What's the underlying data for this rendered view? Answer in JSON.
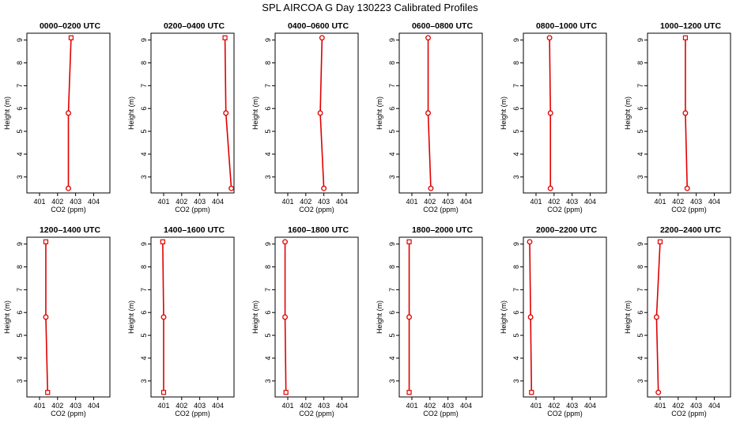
{
  "title": "SPL AIRCOA G  Day 130223  Calibrated Profiles",
  "series_color": "#e00000",
  "chart_data": [
    {
      "type": "line",
      "title": "0000–0200 UTC",
      "xlabel": "CO2 (ppm)",
      "ylabel": "Height (m)",
      "xlim": [
        400.3,
        404.9
      ],
      "ylim": [
        2.3,
        9.3
      ],
      "xticks": [
        401,
        402,
        403,
        404
      ],
      "yticks": [
        3,
        4,
        5,
        6,
        7,
        8,
        9
      ],
      "x": [
        402.6,
        402.6,
        402.75
      ],
      "y": [
        2.5,
        5.8,
        9.1
      ],
      "markers": [
        "circle",
        "circle",
        "square"
      ]
    },
    {
      "type": "line",
      "title": "0200–0400 UTC",
      "xlabel": "CO2 (ppm)",
      "ylabel": "Height (m)",
      "xlim": [
        400.3,
        404.9
      ],
      "ylim": [
        2.3,
        9.3
      ],
      "xticks": [
        401,
        402,
        403,
        404
      ],
      "yticks": [
        3,
        4,
        5,
        6,
        7,
        8,
        9
      ],
      "x": [
        404.75,
        404.45,
        404.4
      ],
      "y": [
        2.5,
        5.8,
        9.1
      ],
      "markers": [
        "circle",
        "circle",
        "square"
      ]
    },
    {
      "type": "line",
      "title": "0400–0600 UTC",
      "xlabel": "CO2 (ppm)",
      "ylabel": "Height (m)",
      "xlim": [
        400.3,
        404.9
      ],
      "ylim": [
        2.3,
        9.3
      ],
      "xticks": [
        401,
        402,
        403,
        404
      ],
      "yticks": [
        3,
        4,
        5,
        6,
        7,
        8,
        9
      ],
      "x": [
        403.0,
        402.8,
        402.9
      ],
      "y": [
        2.5,
        5.8,
        9.1
      ],
      "markers": [
        "circle",
        "circle",
        "circle"
      ]
    },
    {
      "type": "line",
      "title": "0600–0800 UTC",
      "xlabel": "CO2 (ppm)",
      "ylabel": "Height (m)",
      "xlim": [
        400.3,
        404.9
      ],
      "ylim": [
        2.3,
        9.3
      ],
      "xticks": [
        401,
        402,
        403,
        404
      ],
      "yticks": [
        3,
        4,
        5,
        6,
        7,
        8,
        9
      ],
      "x": [
        402.05,
        401.9,
        401.9
      ],
      "y": [
        2.5,
        5.8,
        9.1
      ],
      "markers": [
        "circle",
        "circle",
        "circle"
      ]
    },
    {
      "type": "line",
      "title": "0800–1000 UTC",
      "xlabel": "CO2 (ppm)",
      "ylabel": "Height (m)",
      "xlim": [
        400.3,
        404.9
      ],
      "ylim": [
        2.3,
        9.3
      ],
      "xticks": [
        401,
        402,
        403,
        404
      ],
      "yticks": [
        3,
        4,
        5,
        6,
        7,
        8,
        9
      ],
      "x": [
        401.8,
        401.8,
        401.75
      ],
      "y": [
        2.5,
        5.8,
        9.1
      ],
      "markers": [
        "circle",
        "circle",
        "circle"
      ]
    },
    {
      "type": "line",
      "title": "1000–1200 UTC",
      "xlabel": "CO2 (ppm)",
      "ylabel": "Height (m)",
      "xlim": [
        400.3,
        404.9
      ],
      "ylim": [
        2.3,
        9.3
      ],
      "xticks": [
        401,
        402,
        403,
        404
      ],
      "yticks": [
        3,
        4,
        5,
        6,
        7,
        8,
        9
      ],
      "x": [
        402.5,
        402.4,
        402.4
      ],
      "y": [
        2.5,
        5.8,
        9.1
      ],
      "markers": [
        "circle",
        "circle",
        "square"
      ]
    },
    {
      "type": "line",
      "title": "1200–1400 UTC",
      "xlabel": "CO2 (ppm)",
      "ylabel": "Height (m)",
      "xlim": [
        400.3,
        404.9
      ],
      "ylim": [
        2.3,
        9.3
      ],
      "xticks": [
        401,
        402,
        403,
        404
      ],
      "yticks": [
        3,
        4,
        5,
        6,
        7,
        8,
        9
      ],
      "x": [
        401.45,
        401.35,
        401.35
      ],
      "y": [
        2.5,
        5.8,
        9.1
      ],
      "markers": [
        "square",
        "circle",
        "square"
      ]
    },
    {
      "type": "line",
      "title": "1400–1600 UTC",
      "xlabel": "CO2 (ppm)",
      "ylabel": "Height (m)",
      "xlim": [
        400.3,
        404.9
      ],
      "ylim": [
        2.3,
        9.3
      ],
      "xticks": [
        401,
        402,
        403,
        404
      ],
      "yticks": [
        3,
        4,
        5,
        6,
        7,
        8,
        9
      ],
      "x": [
        401.0,
        401.0,
        400.95
      ],
      "y": [
        2.5,
        5.8,
        9.1
      ],
      "markers": [
        "square",
        "circle",
        "square"
      ]
    },
    {
      "type": "line",
      "title": "1600–1800 UTC",
      "xlabel": "CO2 (ppm)",
      "ylabel": "Height (m)",
      "xlim": [
        400.3,
        404.9
      ],
      "ylim": [
        2.3,
        9.3
      ],
      "xticks": [
        401,
        402,
        403,
        404
      ],
      "yticks": [
        3,
        4,
        5,
        6,
        7,
        8,
        9
      ],
      "x": [
        400.9,
        400.85,
        400.85
      ],
      "y": [
        2.5,
        5.8,
        9.1
      ],
      "markers": [
        "square",
        "circle",
        "circle"
      ]
    },
    {
      "type": "line",
      "title": "1800–2000 UTC",
      "xlabel": "CO2 (ppm)",
      "ylabel": "Height (m)",
      "xlim": [
        400.3,
        404.9
      ],
      "ylim": [
        2.3,
        9.3
      ],
      "xticks": [
        401,
        402,
        403,
        404
      ],
      "yticks": [
        3,
        4,
        5,
        6,
        7,
        8,
        9
      ],
      "x": [
        400.85,
        400.85,
        400.85
      ],
      "y": [
        2.5,
        5.8,
        9.1
      ],
      "markers": [
        "square",
        "circle",
        "square"
      ]
    },
    {
      "type": "line",
      "title": "2000–2200 UTC",
      "xlabel": "CO2 (ppm)",
      "ylabel": "Height (m)",
      "xlim": [
        400.3,
        404.9
      ],
      "ylim": [
        2.3,
        9.3
      ],
      "xticks": [
        401,
        402,
        403,
        404
      ],
      "yticks": [
        3,
        4,
        5,
        6,
        7,
        8,
        9
      ],
      "x": [
        400.75,
        400.7,
        400.65
      ],
      "y": [
        2.5,
        5.8,
        9.1
      ],
      "markers": [
        "square",
        "circle",
        "circle"
      ]
    },
    {
      "type": "line",
      "title": "2200–2400 UTC",
      "xlabel": "CO2 (ppm)",
      "ylabel": "Height (m)",
      "xlim": [
        400.3,
        404.9
      ],
      "ylim": [
        2.3,
        9.3
      ],
      "xticks": [
        401,
        402,
        403,
        404
      ],
      "yticks": [
        3,
        4,
        5,
        6,
        7,
        8,
        9
      ],
      "x": [
        400.9,
        400.8,
        401.0
      ],
      "y": [
        2.5,
        5.8,
        9.1
      ],
      "markers": [
        "circle",
        "circle",
        "square"
      ]
    }
  ]
}
